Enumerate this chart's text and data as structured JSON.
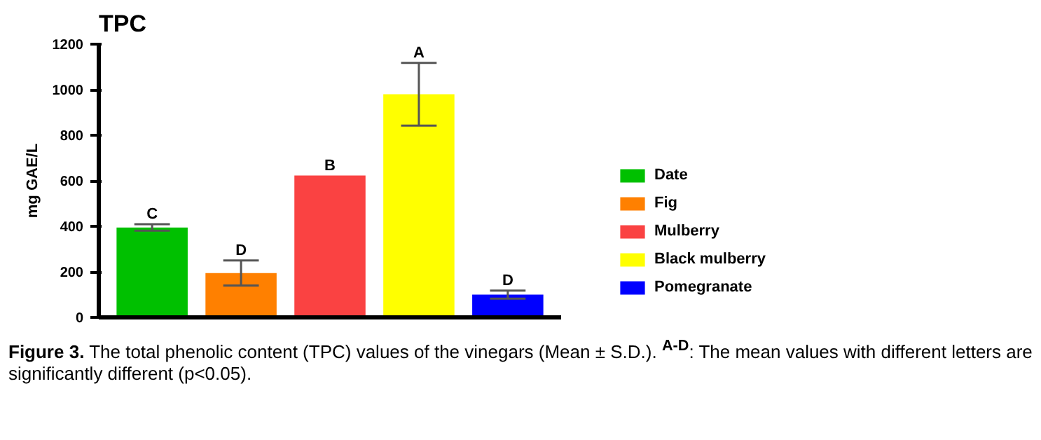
{
  "chart_data": {
    "type": "bar",
    "title": "TPC",
    "ylabel": "mg GAE/L",
    "categories": [
      null,
      null,
      null,
      null,
      null
    ],
    "series": [
      {
        "name": "Date",
        "color": "#00c000",
        "values": [
          395,
          null,
          null,
          null,
          null
        ],
        "errors": [
          14,
          null,
          null,
          null,
          null
        ],
        "value_labels": [
          "C",
          null,
          null,
          null,
          null
        ]
      },
      {
        "name": "Fig",
        "color": "#ff8000",
        "values": [
          null,
          195,
          null,
          null,
          null
        ],
        "errors": [
          null,
          55,
          null,
          null,
          null
        ],
        "value_labels": [
          null,
          "D",
          null,
          null,
          null
        ]
      },
      {
        "name": "Mulberry",
        "color": "#fa4242",
        "values": [
          null,
          null,
          623,
          null,
          null
        ],
        "value_labels": [
          null,
          null,
          "B",
          null,
          null
        ]
      },
      {
        "name": "Black mulberry",
        "color": "#ffff00",
        "values": [
          null,
          null,
          null,
          980,
          null
        ],
        "errors": [
          null,
          null,
          null,
          138,
          null
        ],
        "value_labels": [
          null,
          null,
          null,
          "A",
          null
        ]
      },
      {
        "name": "Pomegranate",
        "color": "#0000ff",
        "values": [
          null,
          null,
          null,
          null,
          100
        ],
        "errors": [
          null,
          null,
          null,
          null,
          18
        ],
        "value_labels": [
          null,
          null,
          null,
          null,
          "D"
        ]
      }
    ],
    "ylim": [
      0,
      1200
    ],
    "yticks": [
      0,
      200,
      400,
      600,
      800,
      1000,
      1200
    ],
    "grid": false,
    "legend": "right",
    "tick_labels": "y",
    "annotations": [
      "Figure 3. The total phenolic content (TPC) values of the vinegars (Mean ± S.D.). $^{A-D}$: The mean values with different letters are significantly different (p<0.05)."
    ]
  }
}
